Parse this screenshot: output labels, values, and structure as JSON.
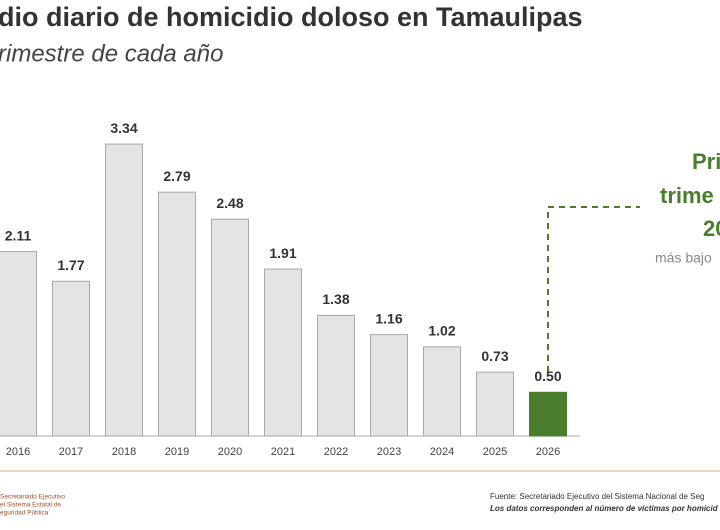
{
  "chart_data": {
    "type": "bar",
    "title": "dio diario de homicidio doloso en Tamaulipas",
    "subtitle": "rimestre de cada año",
    "categories": [
      "2016",
      "2017",
      "2018",
      "2019",
      "2020",
      "2021",
      "2022",
      "2023",
      "2024",
      "2025",
      "2026"
    ],
    "values": [
      2.11,
      1.77,
      3.34,
      2.79,
      2.48,
      1.91,
      1.38,
      1.16,
      1.02,
      0.73,
      0.5
    ],
    "value_labels": [
      "2.11",
      "1.77",
      "3.34",
      "2.79",
      "2.48",
      "1.91",
      "1.38",
      "1.16",
      "1.02",
      "0.73",
      "0.50"
    ],
    "colors": [
      "#e5e4e4",
      "#e5e4e4",
      "#e5e4e4",
      "#e5e4e4",
      "#e5e4e4",
      "#e5e4e4",
      "#e5e4e4",
      "#e5e4e4",
      "#e5e4e4",
      "#e5e4e4",
      "#4b7d2e"
    ],
    "annotation": {
      "lines": [
        "Pri",
        "trime",
        "20"
      ],
      "note": "más bajo"
    },
    "footer": {
      "logo": [
        "Secretariado Ejecutivo",
        "el Sistema Estatal de",
        "eguridad Pública"
      ],
      "source": "Fuente: Secretariado Ejecutivo del Sistema Nacional de Seg",
      "note": "Los datos corresponden al número de víctimas por homicid"
    }
  }
}
